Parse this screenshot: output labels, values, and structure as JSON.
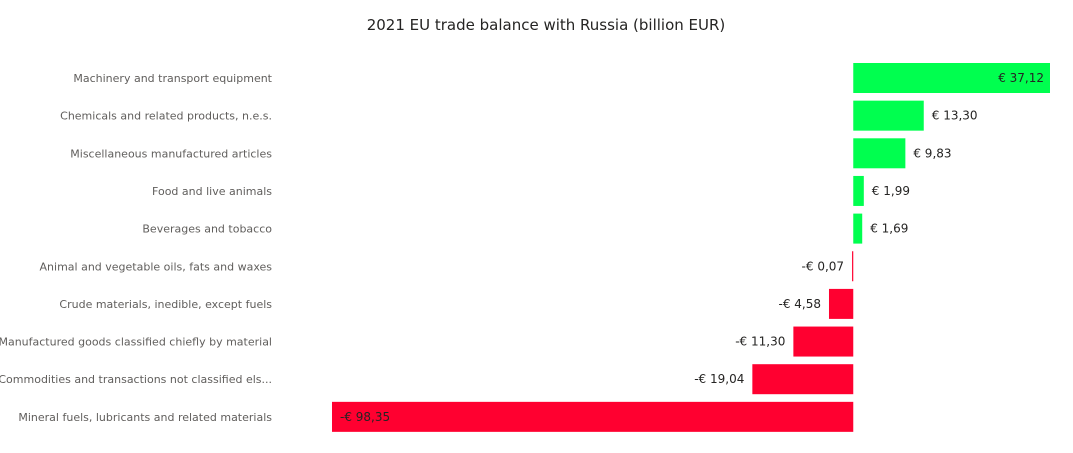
{
  "chart_data": {
    "type": "bar",
    "orientation": "horizontal",
    "title": "2021 EU trade balance with Russia (billion EUR)",
    "categories": [
      "Machinery and transport equipment",
      "Chemicals and related products, n.e.s.",
      "Miscellaneous manufactured articles",
      "Food and live animals",
      "Beverages and tobacco",
      "Animal and vegetable oils, fats and waxes",
      "Crude materials, inedible, except fuels",
      "Manufactured goods classified chiefly by material",
      "Commodities and transactions not classified els...",
      "Mineral fuels, lubricants and related materials"
    ],
    "values": [
      37.12,
      13.3,
      9.83,
      1.99,
      1.69,
      -0.07,
      -4.58,
      -11.3,
      -19.04,
      -98.35
    ],
    "data_labels": [
      "€ 37,12",
      "€ 13,30",
      "€ 9,83",
      "€ 1,99",
      "€ 1,69",
      "-€ 0,07",
      "-€ 4,58",
      "-€ 11,30",
      "-€ 19,04",
      "-€ 98,35"
    ],
    "xlim": [
      -98.35,
      37.12
    ],
    "xlabel": "",
    "ylabel": "",
    "grid": false,
    "legend": "none",
    "colors": {
      "positive": "#00ff4f",
      "negative": "#ff0030"
    }
  }
}
